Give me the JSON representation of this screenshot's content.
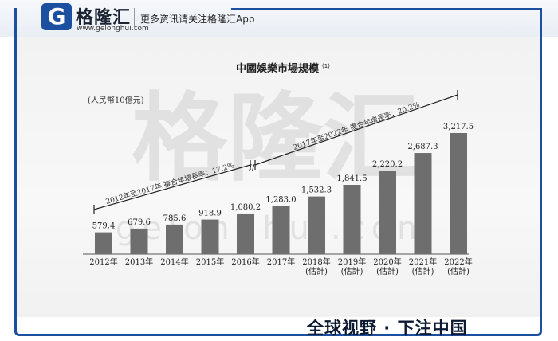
{
  "header": {
    "logo_letter": "G",
    "logo_name": "格隆汇",
    "logo_url": "www.gelonghui.com",
    "tagline": "更多资讯请关注格隆汇App"
  },
  "watermark": {
    "chinese": "格隆汇",
    "latin": "gelonghui.com"
  },
  "footer": {
    "slogan": "全球视野 · 下注中国"
  },
  "colors": {
    "brand_blue": "#1c4fa0",
    "bar_fill": "#6e6e6e"
  },
  "chart_data": {
    "type": "bar",
    "title": "中國娛樂市場規模",
    "title_note": "(1)",
    "ylabel": "(人民幣10億元)",
    "ylim": [
      0,
      3300
    ],
    "categories": [
      "2012年",
      "2013年",
      "2014年",
      "2015年",
      "2016年",
      "2017年",
      "2018年",
      "2019年",
      "2020年",
      "2021年",
      "2022年"
    ],
    "category_notes": [
      "",
      "",
      "",
      "",
      "",
      "",
      "(估計)",
      "(估計)",
      "(估計)",
      "(估計)",
      "(估計)"
    ],
    "values": [
      579.4,
      679.6,
      785.6,
      918.9,
      1080.2,
      1283.0,
      1532.3,
      1841.5,
      2220.2,
      2687.3,
      3217.5
    ],
    "value_labels": [
      "579.4",
      "679.6",
      "785.6",
      "918.9",
      "1,080.2",
      "1,283.0",
      "1,532.3",
      "1,841.5",
      "2,220.2",
      "2,687.3",
      "3,217.5"
    ],
    "annotations": [
      {
        "text": "2012年至2017年 複合年增長率：17.2%",
        "from_category": 0,
        "to_category": 5
      },
      {
        "text": "2017年至2022年 複合年增長率：20.2%",
        "from_category": 5,
        "to_category": 10
      }
    ]
  }
}
